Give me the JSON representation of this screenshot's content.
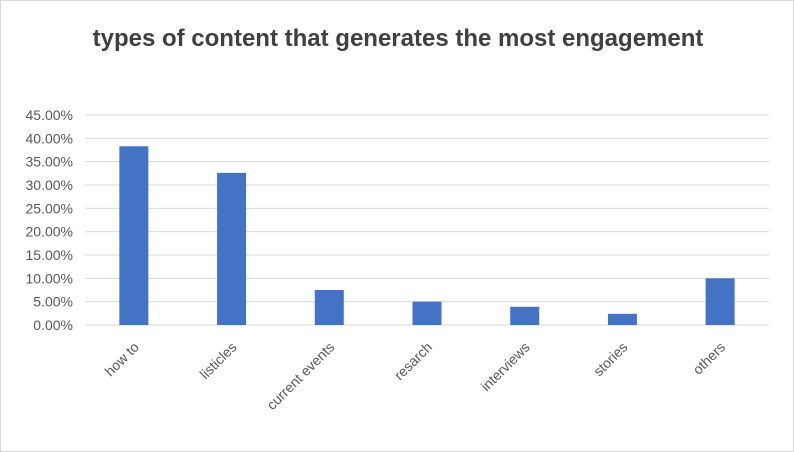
{
  "chart_data": {
    "type": "bar",
    "title": "types of content that generates the most engagement",
    "categories": [
      "how to",
      "listicles",
      "current events",
      "resarch",
      "interviews",
      "stories",
      "others"
    ],
    "values": [
      38.3,
      32.6,
      7.5,
      5.0,
      3.9,
      2.4,
      10.0
    ],
    "y_tick_labels": [
      "0.00%",
      "5.00%",
      "10.00%",
      "15.00%",
      "20.00%",
      "25.00%",
      "30.00%",
      "35.00%",
      "40.00%",
      "45.00%"
    ],
    "ylim": [
      0,
      45
    ],
    "grid": true,
    "legend": "none",
    "bar_color": "#4472c4"
  }
}
